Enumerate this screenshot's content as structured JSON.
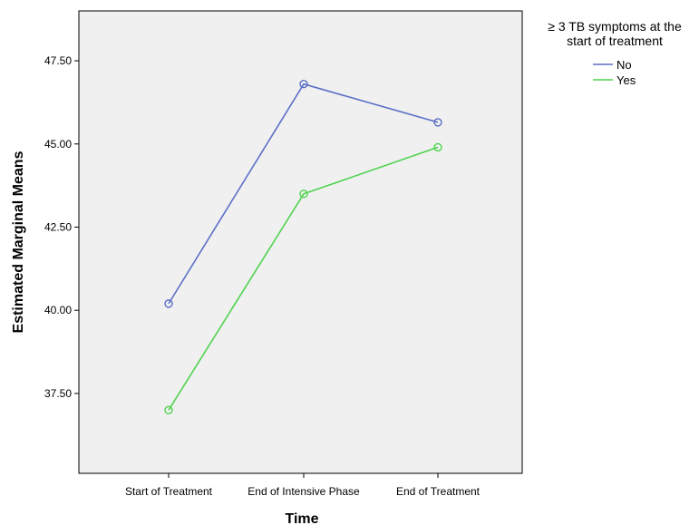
{
  "chart_data": {
    "type": "line",
    "title": "",
    "xlabel": "Time",
    "ylabel": "Estimated Marginal Means",
    "categories": [
      "Start of Treatment",
      "End of Intensive Phase",
      "End of Treatment"
    ],
    "ylim": [
      35.1,
      49.0
    ],
    "yticks": [
      37.5,
      40.0,
      42.5,
      45.0,
      47.5
    ],
    "ytick_labels": [
      "37.50",
      "40.00",
      "42.50",
      "45.00",
      "47.50"
    ],
    "grid": false,
    "legend": {
      "title_lines": [
        "≥ 3 TB symptoms at the",
        "start of treatment"
      ],
      "placement": "top-right outside plot"
    },
    "series": [
      {
        "name": "No",
        "color": "#5b6fc6",
        "values": [
          40.2,
          46.8,
          45.65
        ]
      },
      {
        "name": "Yes",
        "color": "#4fd34f",
        "values": [
          37.0,
          43.5,
          44.9
        ]
      }
    ],
    "plot_background": "#f0f0f0"
  }
}
